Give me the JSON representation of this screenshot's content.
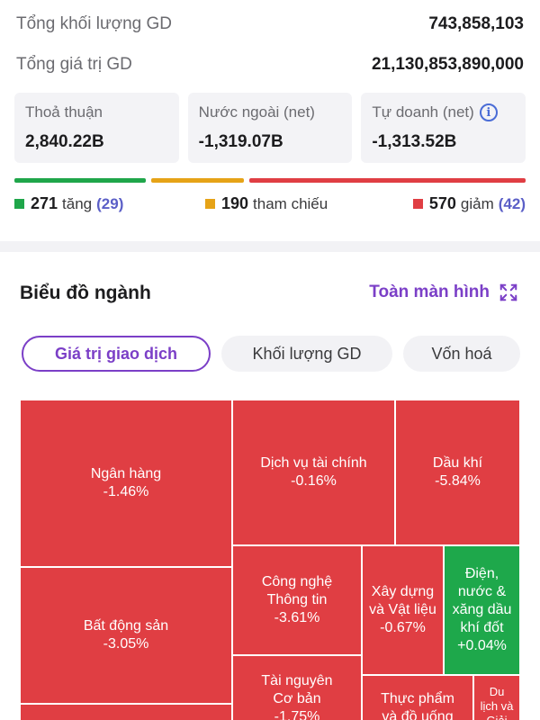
{
  "summary": {
    "volume_label": "Tổng khối lượng GD",
    "volume_value": "743,858,103",
    "value_label": "Tổng giá trị GD",
    "value_value": "21,130,853,890,000"
  },
  "cards": [
    {
      "label": "Thoả thuận",
      "value": "2,840.22B"
    },
    {
      "label": "Nước ngoài (net)",
      "value": "-1,319.07B"
    },
    {
      "label": "Tự doanh (net)",
      "value": "-1,313.52B"
    }
  ],
  "breadth": {
    "colors": {
      "up": "#1fa64a",
      "ref": "#e6a317",
      "down": "#e03e43"
    },
    "up": {
      "count": "271",
      "label": "tăng",
      "extra": "(29)"
    },
    "ref": {
      "count": "190",
      "label": "tham chiếu"
    },
    "down": {
      "count": "570",
      "label": "giảm",
      "extra": "(42)"
    }
  },
  "sector": {
    "title": "Biểu đồ ngành",
    "fullscreen_label": "Toàn màn hình",
    "tabs": [
      "Giá trị giao dịch",
      "Khối lượng GD",
      "Vốn hoá"
    ],
    "active_tab": 0
  },
  "treemap": [
    {
      "name": "Ngân hàng",
      "change": "-1.46%"
    },
    {
      "name": "Dịch vụ tài chính",
      "change": "-0.16%"
    },
    {
      "name": "Dầu khí",
      "change": "-5.84%"
    },
    {
      "name": "Bất động sản",
      "change": "-3.05%"
    },
    {
      "name": "Công nghệ Thông tin",
      "change": "-3.61%"
    },
    {
      "name": "Xây dựng và Vật liệu",
      "change": "-0.67%"
    },
    {
      "name": "Điện, nước & xăng dầu khí đốt",
      "change": "+0.04%"
    },
    {
      "name": "Tài nguyên Cơ bản",
      "change": "-1.75%"
    },
    {
      "name": "Thực phẩm và đồ uống",
      "change": ""
    },
    {
      "name": "Du lịch và Giải trí",
      "change": ""
    }
  ]
}
